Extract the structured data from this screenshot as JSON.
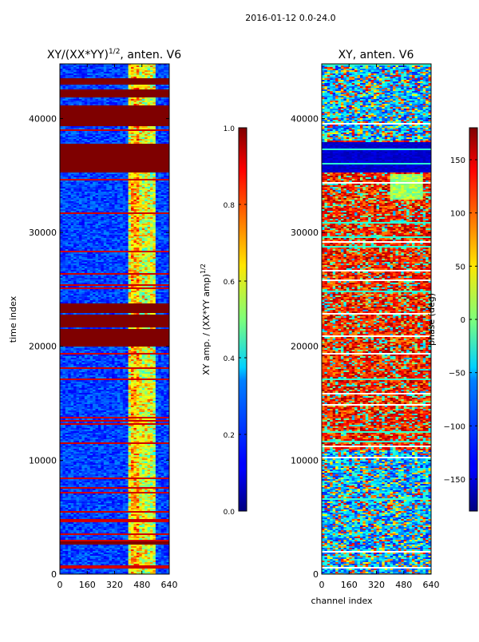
{
  "figure": {
    "suptitle": "2016-01-12 0.0-24.0"
  },
  "chart_data": [
    {
      "type": "heatmap",
      "title": "XY/(XX*YY)^{1/2}, anten. V6",
      "title_main": "XY/(XX*YY)",
      "title_exp": "1/2",
      "title_tail": ", anten. V6",
      "xlabel": "",
      "ylabel": "time index",
      "xlim": [
        0,
        640
      ],
      "ylim": [
        0,
        44800
      ],
      "xticks": [
        "0",
        "160",
        "320",
        "480",
        "640"
      ],
      "yticks": [
        "0",
        "10000",
        "20000",
        "30000",
        "40000"
      ],
      "colorbar": {
        "label": "XY amp. / (XX*YY amp)^{1/2}",
        "label_main": "XY amp. / (XX*YY amp)",
        "label_exp": "1/2",
        "ticks": [
          "0.0",
          "0.2",
          "0.4",
          "0.6",
          "0.8",
          "1.0"
        ],
        "range": [
          0.0,
          1.0
        ],
        "colormap": "jet"
      },
      "saturated_time_bands": [
        [
          2600,
          2900
        ],
        [
          20100,
          21600
        ],
        [
          21800,
          22800
        ],
        [
          23000,
          23800
        ],
        [
          35300,
          37800
        ],
        [
          39400,
          41200
        ],
        [
          41900,
          42600
        ],
        [
          43000,
          43600
        ]
      ]
    },
    {
      "type": "heatmap",
      "title": "XY, anten. V6",
      "xlabel": "channel index",
      "ylabel": "",
      "xlim": [
        0,
        640
      ],
      "ylim": [
        0,
        44800
      ],
      "xticks": [
        "0",
        "160",
        "320",
        "480",
        "640"
      ],
      "yticks": [
        "0",
        "10000",
        "20000",
        "30000",
        "40000"
      ],
      "colorbar": {
        "label": "phase (deg)",
        "ticks": [
          "150",
          "100",
          "50",
          "0",
          "−50",
          "−100",
          "−150"
        ],
        "tick_values": [
          150,
          100,
          50,
          0,
          -50,
          -100,
          -150
        ],
        "range": [
          -180,
          180
        ],
        "colormap": "jet"
      }
    }
  ]
}
